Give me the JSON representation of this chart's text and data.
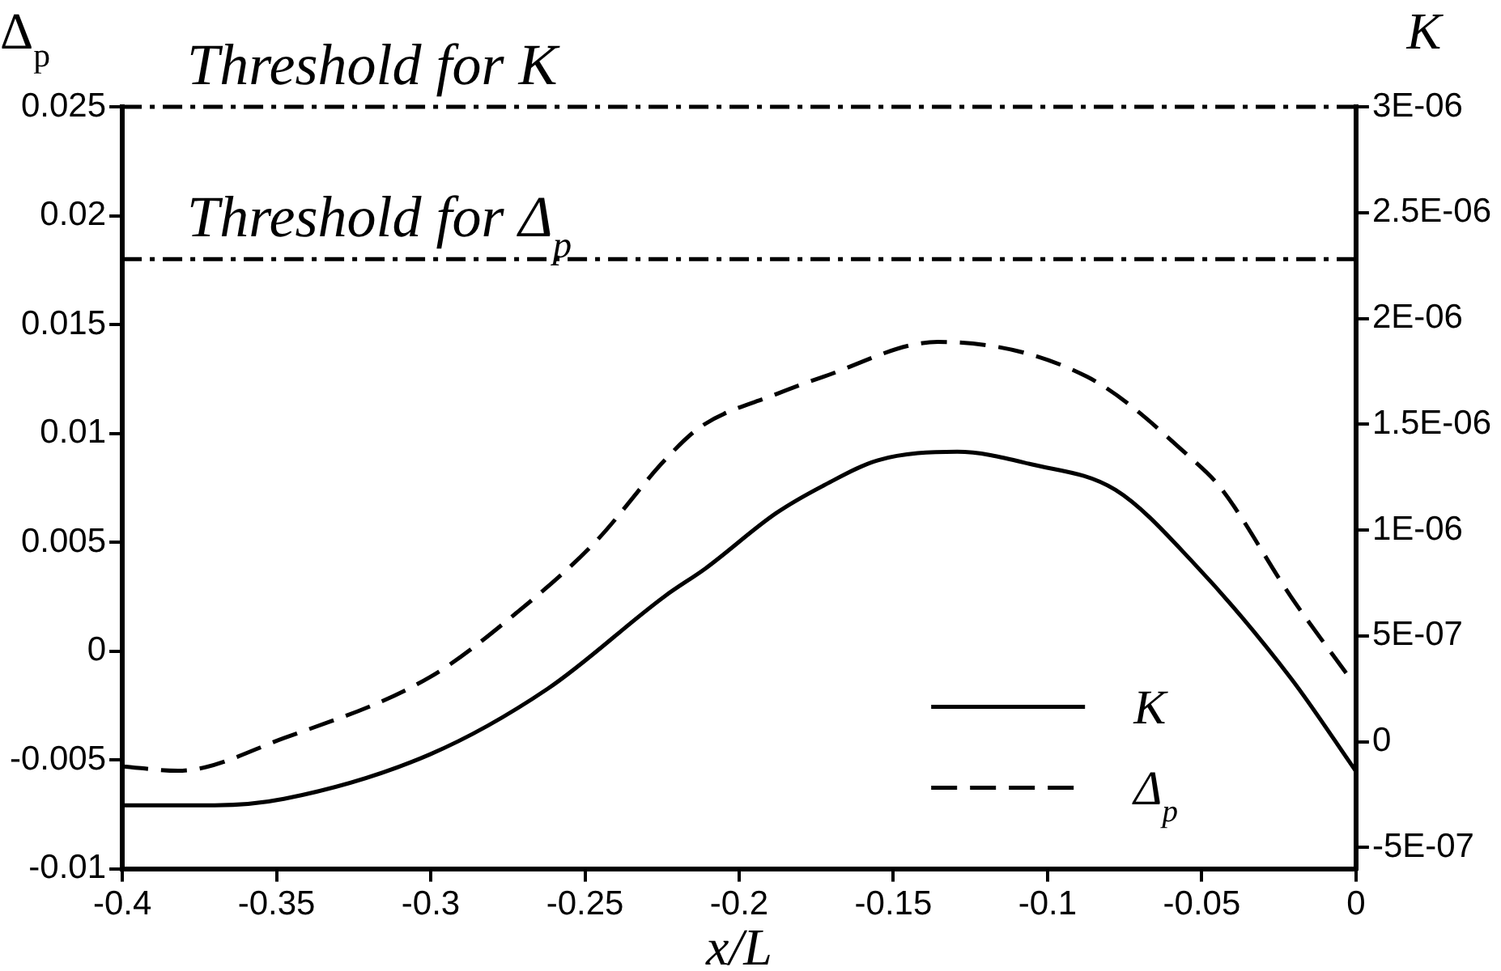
{
  "chart_data": {
    "type": "line",
    "xlabel": "x/L",
    "ylabel": "Δ$_{p}$",
    "y2label": "K",
    "xlim": [
      -0.4,
      0
    ],
    "xticks": [
      -0.4,
      -0.35,
      -0.3,
      -0.25,
      -0.2,
      -0.15,
      -0.1,
      -0.05,
      0
    ],
    "ylim": [
      -0.01,
      0.025
    ],
    "yticks": [
      -0.01,
      -0.005,
      0,
      0.005,
      0.01,
      0.015,
      0.02,
      0.025
    ],
    "y2lim": [
      -6e-07,
      3e-06
    ],
    "y2ticks": [
      {
        "value": -5e-07,
        "label": "-5E-07"
      },
      0,
      {
        "value": 5e-07,
        "label": "5E-07"
      },
      {
        "value": 1e-06,
        "label": "1E-06"
      },
      {
        "value": 1.5e-06,
        "label": "1.5E-06"
      },
      {
        "value": 2e-06,
        "label": "2E-06"
      },
      {
        "value": 2.5e-06,
        "label": "2.5E-06"
      },
      {
        "value": 3e-06,
        "label": "3E-06"
      }
    ],
    "series": [
      {
        "name": "K",
        "color": "#000000",
        "axis": "y2",
        "line_style": "solid",
        "x": [
          -0.4,
          -0.37,
          -0.3476,
          -0.3003,
          -0.2621,
          -0.2239,
          -0.2108,
          -0.188,
          -0.1727,
          -0.155,
          -0.1293,
          -0.105,
          -0.078,
          -0.053,
          -0.0211,
          0
        ],
        "values": [
          -3e-07,
          -3e-07,
          -2.7e-07,
          -6e-08,
          2.5e-07,
          6.9e-07,
          8.2e-07,
          1.08e-06,
          1.21e-06,
          1.33e-06,
          1.37e-06,
          1.31e-06,
          1.19e-06,
          8.5e-07,
          3e-07,
          -1.4e-07
        ]
      },
      {
        "name": "Δ$_{p}$",
        "color": "#000000",
        "axis": "y",
        "line_style": "dashed",
        "x": [
          -0.4,
          -0.382,
          -0.3476,
          -0.3003,
          -0.2718,
          -0.2467,
          -0.2239,
          -0.2125,
          -0.188,
          -0.1727,
          -0.1356,
          -0.0872,
          -0.053,
          -0.0439,
          -0.0211,
          -0.0017
        ],
        "values": [
          -0.0053,
          -0.0055,
          -0.004,
          -0.0012,
          0.0018,
          0.005,
          0.0088,
          0.0103,
          0.0118,
          0.0126,
          0.0142,
          0.0126,
          0.0088,
          0.0075,
          0.0025,
          -0.0013
        ]
      }
    ],
    "ref_lines": [
      {
        "axis": "y2",
        "value": 3e-06,
        "label": "Threshold for K",
        "line_style": "dashdot",
        "color": "#000000"
      },
      {
        "axis": "y",
        "value": 0.018,
        "label": "Threshold for Δ$_{p}$",
        "line_style": "dashdot",
        "color": "#000000"
      }
    ],
    "legend": "bottom right",
    "marker": "none"
  }
}
